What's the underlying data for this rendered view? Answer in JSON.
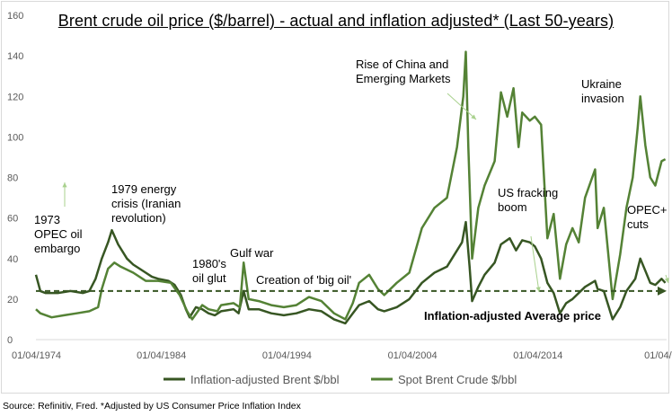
{
  "chart_data": {
    "type": "line",
    "title": "Brent crude oil price ($/barrel) - actual and inflation adjusted* (Last 50-years)",
    "ylim": [
      0,
      160
    ],
    "yticks": [
      0,
      20,
      40,
      60,
      80,
      100,
      120,
      140,
      160
    ],
    "xlim": [
      1974.25,
      2024.5
    ],
    "xticks": [
      {
        "label": "01/04/1974",
        "x": 1974.25
      },
      {
        "label": "01/04/1984",
        "x": 1984.25
      },
      {
        "label": "01/04/1994",
        "x": 1994.25
      },
      {
        "label": "01/04/2004",
        "x": 2004.25
      },
      {
        "label": "01/04/2014",
        "x": 2014.25
      },
      {
        "label": "01/04/20",
        "x": 2024.25
      }
    ],
    "average": {
      "value": 24,
      "label": "Inflation-adjusted Average price"
    },
    "series": [
      {
        "name": "Inflation-adjusted Brent $/bbl",
        "color": "#375623",
        "points": [
          [
            1974.25,
            32
          ],
          [
            1974.6,
            24
          ],
          [
            1975,
            23
          ],
          [
            1976,
            23
          ],
          [
            1977,
            24
          ],
          [
            1978,
            23
          ],
          [
            1978.5,
            24
          ],
          [
            1979,
            30
          ],
          [
            1979.5,
            40
          ],
          [
            1980,
            48
          ],
          [
            1980.3,
            54
          ],
          [
            1980.8,
            47
          ],
          [
            1981.5,
            40
          ],
          [
            1982,
            37
          ],
          [
            1982.5,
            35
          ],
          [
            1983,
            33
          ],
          [
            1983.5,
            31
          ],
          [
            1984,
            30
          ],
          [
            1984.8,
            29
          ],
          [
            1985.3,
            27
          ],
          [
            1985.8,
            22
          ],
          [
            1986.2,
            15
          ],
          [
            1986.5,
            11
          ],
          [
            1987,
            16
          ],
          [
            1987.5,
            15
          ],
          [
            1988,
            13
          ],
          [
            1988.5,
            12
          ],
          [
            1989,
            14
          ],
          [
            1990,
            15
          ],
          [
            1990.4,
            13
          ],
          [
            1990.8,
            24
          ],
          [
            1991.2,
            15
          ],
          [
            1992,
            15
          ],
          [
            1993,
            13
          ],
          [
            1994,
            12
          ],
          [
            1995,
            13
          ],
          [
            1996,
            15
          ],
          [
            1997,
            14
          ],
          [
            1998,
            10
          ],
          [
            1998.9,
            8
          ],
          [
            1999.5,
            13
          ],
          [
            2000,
            17
          ],
          [
            2000.8,
            19
          ],
          [
            2001.5,
            15
          ],
          [
            2002,
            14
          ],
          [
            2003,
            16
          ],
          [
            2004,
            20
          ],
          [
            2005,
            28
          ],
          [
            2006,
            33
          ],
          [
            2007,
            36
          ],
          [
            2008.2,
            48
          ],
          [
            2008.5,
            58
          ],
          [
            2008.8,
            36
          ],
          [
            2009,
            19
          ],
          [
            2009.5,
            26
          ],
          [
            2010,
            32
          ],
          [
            2010.8,
            38
          ],
          [
            2011.3,
            47
          ],
          [
            2012,
            50
          ],
          [
            2012.5,
            44
          ],
          [
            2013,
            49
          ],
          [
            2013.6,
            48
          ],
          [
            2014,
            46
          ],
          [
            2014.5,
            40
          ],
          [
            2015,
            28
          ],
          [
            2015.5,
            23
          ],
          [
            2016,
            13
          ],
          [
            2016.5,
            18
          ],
          [
            2017,
            20
          ],
          [
            2018,
            26
          ],
          [
            2018.8,
            29
          ],
          [
            2019,
            25
          ],
          [
            2019.5,
            24
          ],
          [
            2020.2,
            10
          ],
          [
            2020.8,
            16
          ],
          [
            2021.3,
            24
          ],
          [
            2022,
            30
          ],
          [
            2022.4,
            40
          ],
          [
            2022.8,
            34
          ],
          [
            2023.2,
            28
          ],
          [
            2023.6,
            27
          ],
          [
            2024.1,
            30
          ],
          [
            2024.4,
            28
          ]
        ]
      },
      {
        "name": "Spot Brent Crude $/bbl",
        "color": "#548235",
        "points": [
          [
            1974.25,
            15
          ],
          [
            1974.6,
            13
          ],
          [
            1975.5,
            11
          ],
          [
            1976.5,
            12
          ],
          [
            1977.5,
            13
          ],
          [
            1978.5,
            14
          ],
          [
            1979.2,
            16
          ],
          [
            1979.5,
            25
          ],
          [
            1980,
            35
          ],
          [
            1980.5,
            38
          ],
          [
            1981,
            36
          ],
          [
            1982,
            33
          ],
          [
            1983,
            29
          ],
          [
            1984,
            29
          ],
          [
            1985,
            28
          ],
          [
            1985.7,
            22
          ],
          [
            1986.3,
            14
          ],
          [
            1986.7,
            10
          ],
          [
            1987.5,
            17
          ],
          [
            1988,
            15
          ],
          [
            1988.7,
            14
          ],
          [
            1989,
            17
          ],
          [
            1990,
            18
          ],
          [
            1990.5,
            16
          ],
          [
            1990.8,
            38
          ],
          [
            1991.2,
            20
          ],
          [
            1992,
            19
          ],
          [
            1993,
            17
          ],
          [
            1994,
            16
          ],
          [
            1995,
            17
          ],
          [
            1996,
            21
          ],
          [
            1997,
            19
          ],
          [
            1998,
            13
          ],
          [
            1998.9,
            10
          ],
          [
            1999.5,
            18
          ],
          [
            2000,
            28
          ],
          [
            2000.8,
            32
          ],
          [
            2001.5,
            25
          ],
          [
            2002,
            22
          ],
          [
            2003,
            28
          ],
          [
            2004,
            33
          ],
          [
            2005,
            55
          ],
          [
            2006,
            65
          ],
          [
            2007,
            70
          ],
          [
            2007.8,
            95
          ],
          [
            2008.3,
            120
          ],
          [
            2008.5,
            142
          ],
          [
            2008.7,
            95
          ],
          [
            2009,
            40
          ],
          [
            2009.5,
            65
          ],
          [
            2010,
            76
          ],
          [
            2010.8,
            88
          ],
          [
            2011.3,
            122
          ],
          [
            2011.8,
            110
          ],
          [
            2012.3,
            124
          ],
          [
            2012.7,
            95
          ],
          [
            2013,
            112
          ],
          [
            2013.6,
            108
          ],
          [
            2014,
            110
          ],
          [
            2014.5,
            106
          ],
          [
            2015,
            50
          ],
          [
            2015.5,
            62
          ],
          [
            2016,
            30
          ],
          [
            2016.5,
            47
          ],
          [
            2017,
            55
          ],
          [
            2017.5,
            48
          ],
          [
            2018,
            70
          ],
          [
            2018.8,
            84
          ],
          [
            2019,
            55
          ],
          [
            2019.5,
            65
          ],
          [
            2020.2,
            20
          ],
          [
            2020.8,
            42
          ],
          [
            2021.3,
            65
          ],
          [
            2021.8,
            80
          ],
          [
            2022.2,
            105
          ],
          [
            2022.4,
            120
          ],
          [
            2022.8,
            96
          ],
          [
            2023.2,
            80
          ],
          [
            2023.6,
            76
          ],
          [
            2024.1,
            88
          ],
          [
            2024.4,
            89
          ]
        ]
      }
    ],
    "annotations": [
      {
        "id": "opec-embargo",
        "lines": [
          "1973",
          "OPEC oil",
          "embargo"
        ]
      },
      {
        "id": "energy-crisis",
        "lines": [
          "1979 energy",
          "crisis (Iranian",
          "revolution)"
        ]
      },
      {
        "id": "oil-glut",
        "lines": [
          "1980's",
          "oil glut"
        ]
      },
      {
        "id": "gulf-war",
        "lines": [
          "Gulf war"
        ]
      },
      {
        "id": "big-oil",
        "lines": [
          "Creation of 'big oil'"
        ]
      },
      {
        "id": "china-rise",
        "lines": [
          "Rise of China and",
          "Emerging Markets"
        ]
      },
      {
        "id": "fracking",
        "lines": [
          "US fracking",
          "boom"
        ]
      },
      {
        "id": "ukraine",
        "lines": [
          "Ukraine",
          "invasion"
        ]
      },
      {
        "id": "opec-cuts",
        "lines": [
          "OPEC+",
          "cuts"
        ]
      }
    ]
  },
  "source_note": "Source: Refinitiv, Fred. *Adjusted by US Consumer Price Inflation Index"
}
